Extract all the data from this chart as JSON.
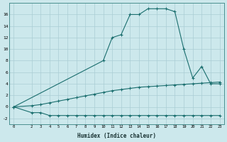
{
  "xlabel": "Humidex (Indice chaleur)",
  "bg_color": "#cce8ec",
  "grid_color": "#aacdd4",
  "line_color": "#1a6e6e",
  "line1_x": [
    0,
    2,
    3,
    4,
    5,
    6,
    7,
    8,
    9,
    10,
    11,
    12,
    13,
    14,
    15,
    16,
    17,
    18,
    19,
    20,
    21,
    22,
    23
  ],
  "line1_y": [
    0,
    -1.0,
    -1.0,
    -1.5,
    -1.5,
    -1.5,
    -1.5,
    -1.5,
    -1.5,
    -1.5,
    -1.5,
    -1.5,
    -1.5,
    -1.5,
    -1.5,
    -1.5,
    -1.5,
    -1.5,
    -1.5,
    -1.5,
    -1.5,
    -1.5,
    -1.5
  ],
  "line2_x": [
    0,
    2,
    3,
    4,
    5,
    6,
    7,
    8,
    9,
    10,
    11,
    12,
    13,
    14,
    15,
    16,
    17,
    18,
    19,
    20,
    21,
    22,
    23
  ],
  "line2_y": [
    0,
    0.2,
    0.4,
    0.7,
    1.0,
    1.3,
    1.6,
    1.9,
    2.2,
    2.5,
    2.8,
    3.0,
    3.2,
    3.4,
    3.5,
    3.6,
    3.7,
    3.8,
    3.9,
    4.0,
    4.1,
    4.2,
    4.3
  ],
  "line3_x": [
    0,
    10,
    11,
    12,
    13,
    14,
    15,
    16,
    17,
    18,
    19,
    20,
    21,
    22,
    23
  ],
  "line3_y": [
    0,
    8,
    12,
    12.5,
    16,
    16,
    17,
    17,
    17,
    16.5,
    10,
    5,
    7,
    4,
    4
  ],
  "xlim": [
    -0.5,
    23.5
  ],
  "ylim": [
    -3,
    18
  ],
  "yticks": [
    -2,
    0,
    2,
    4,
    6,
    8,
    10,
    12,
    14,
    16
  ],
  "xticks": [
    0,
    2,
    3,
    4,
    5,
    6,
    7,
    8,
    9,
    10,
    11,
    12,
    13,
    14,
    15,
    16,
    17,
    18,
    19,
    20,
    21,
    22,
    23
  ]
}
